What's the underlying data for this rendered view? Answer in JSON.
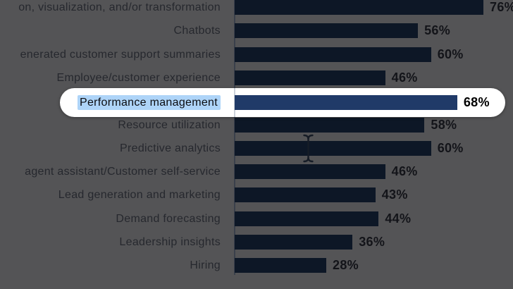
{
  "chart_data": {
    "type": "bar",
    "orientation": "horizontal",
    "title": "",
    "xlabel": "",
    "ylabel": "",
    "xlim": [
      0,
      85
    ],
    "grid": false,
    "legend": "none",
    "value_suffix": "%",
    "categories": [
      "on, visualization, and/or transformation",
      "Chatbots",
      "enerated customer support summaries",
      "Employee/customer experience",
      "Performance management",
      "Resource utilization",
      "Predictive analytics",
      "agent assistant/Customer self-service",
      "Lead generation and marketing",
      "Demand forecasting",
      "Leadership insights",
      "Hiring"
    ],
    "values": [
      76,
      56,
      60,
      46,
      68,
      58,
      60,
      46,
      43,
      44,
      36,
      28
    ],
    "display_values": [
      "76%",
      "56%",
      "60%",
      "46%",
      "68%",
      "58%",
      "60%",
      "46%",
      "43%",
      "44%",
      "36%",
      "28%"
    ]
  },
  "highlight": {
    "label": "Performance management",
    "value": 68,
    "value_label": "68%",
    "row_index": 4,
    "selection_color": "#aed4f8",
    "capsule_color": "#ffffff",
    "bar_color": "#203a68"
  },
  "colors": {
    "dim_background": "#545456",
    "dim_bar": "#0d1726",
    "dim_label_text": "#26282e",
    "dim_value_text": "#131419",
    "axis_line_dim": "#3a404b",
    "axis_line_light": "#ccd2da"
  },
  "cursor": {
    "icon": "text-ibeam-cursor"
  }
}
